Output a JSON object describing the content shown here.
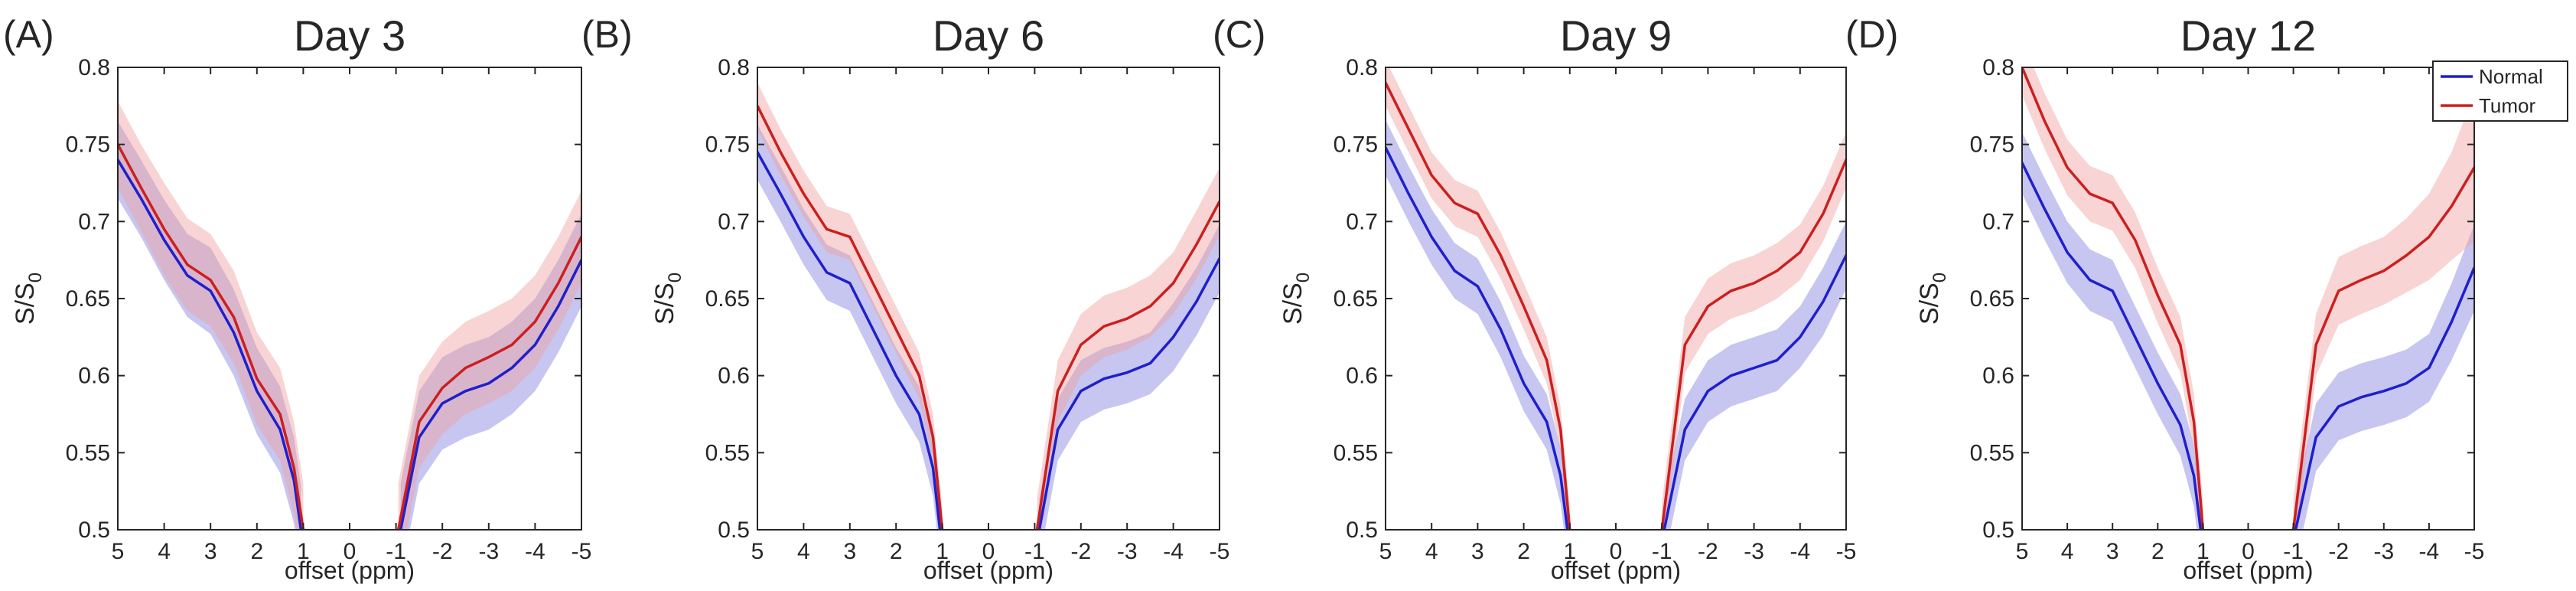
{
  "figure": {
    "legend": {
      "entries": [
        "Normal",
        "Tumor"
      ],
      "placement": "top-right of panel D"
    }
  },
  "chart_data": [
    {
      "type": "line",
      "panel_letter": "(A)",
      "title": "Day 3",
      "xlabel": "offset (ppm)",
      "ylabel": "S/S0",
      "ylabel_main": "S/S",
      "ylabel_sub": "0",
      "xlim": [
        5,
        -5
      ],
      "ylim": [
        0.5,
        0.8
      ],
      "xticks": [
        5,
        4,
        3,
        2,
        1,
        0,
        -1,
        -2,
        -3,
        -4,
        -5
      ],
      "xtick_labels": [
        "5",
        "4",
        "3",
        "2",
        "1",
        "0",
        "-1",
        "-2",
        "-3",
        "-4",
        "-5"
      ],
      "yticks": [
        0.5,
        0.55,
        0.6,
        0.65,
        0.7,
        0.75,
        0.8
      ],
      "ytick_labels": [
        "0.5",
        "0.55",
        "0.6",
        "0.65",
        "0.7",
        "0.75",
        "0.8"
      ],
      "series": [
        {
          "name": "Normal",
          "color": "#1f1fcc",
          "band_color": "#8080e0",
          "left": {
            "x": [
              5,
              4.5,
              4,
              3.5,
              3,
              2.5,
              2,
              1.5,
              1.2,
              1.05
            ],
            "y": [
              0.74,
              0.715,
              0.688,
              0.665,
              0.655,
              0.628,
              0.59,
              0.565,
              0.532,
              0.5
            ],
            "sd": [
              0.025,
              0.025,
              0.026,
              0.027,
              0.028,
              0.028,
              0.028,
              0.028,
              0.028,
              0.028
            ]
          },
          "right": {
            "x": [
              -1.1,
              -1.5,
              -2,
              -2.5,
              -3,
              -3.5,
              -4,
              -4.5,
              -5
            ],
            "y": [
              0.5,
              0.56,
              0.582,
              0.59,
              0.595,
              0.605,
              0.62,
              0.645,
              0.675
            ],
            "sd": [
              0.03,
              0.03,
              0.03,
              0.03,
              0.03,
              0.03,
              0.03,
              0.03,
              0.03
            ]
          }
        },
        {
          "name": "Tumor",
          "color": "#cc1f1f",
          "band_color": "#f0a0a0",
          "left": {
            "x": [
              5,
              4.5,
              4,
              3.5,
              3,
              2.5,
              2,
              1.5,
              1.2,
              1.0
            ],
            "y": [
              0.75,
              0.722,
              0.695,
              0.672,
              0.662,
              0.638,
              0.598,
              0.575,
              0.54,
              0.5
            ],
            "sd": [
              0.028,
              0.028,
              0.03,
              0.03,
              0.03,
              0.03,
              0.03,
              0.03,
              0.03,
              0.03
            ]
          },
          "right": {
            "x": [
              -1.05,
              -1.5,
              -2,
              -2.5,
              -3,
              -3.5,
              -4,
              -4.5,
              -5
            ],
            "y": [
              0.5,
              0.57,
              0.592,
              0.605,
              0.612,
              0.62,
              0.635,
              0.66,
              0.69
            ],
            "sd": [
              0.03,
              0.03,
              0.03,
              0.03,
              0.03,
              0.03,
              0.03,
              0.03,
              0.03
            ]
          }
        }
      ]
    },
    {
      "type": "line",
      "panel_letter": "(B)",
      "title": "Day 6",
      "xlabel": "offset (ppm)",
      "ylabel": "S/S0",
      "ylabel_main": "S/S",
      "ylabel_sub": "0",
      "xlim": [
        5,
        -5
      ],
      "ylim": [
        0.5,
        0.8
      ],
      "xticks": [
        5,
        4,
        3,
        2,
        1,
        0,
        -1,
        -2,
        -3,
        -4,
        -5
      ],
      "xtick_labels": [
        "5",
        "4",
        "3",
        "2",
        "1",
        "0",
        "-1",
        "-2",
        "-3",
        "-4",
        "-5"
      ],
      "yticks": [
        0.5,
        0.55,
        0.6,
        0.65,
        0.7,
        0.75,
        0.8
      ],
      "ytick_labels": [
        "0.5",
        "0.55",
        "0.6",
        "0.65",
        "0.7",
        "0.75",
        "0.8"
      ],
      "series": [
        {
          "name": "Normal",
          "color": "#1f1fcc",
          "band_color": "#8080e0",
          "left": {
            "x": [
              5,
              4.5,
              4,
              3.5,
              3,
              2.5,
              2,
              1.5,
              1.2,
              1.05
            ],
            "y": [
              0.745,
              0.718,
              0.69,
              0.667,
              0.66,
              0.63,
              0.6,
              0.575,
              0.54,
              0.5
            ],
            "sd": [
              0.018,
              0.018,
              0.018,
              0.018,
              0.018,
              0.018,
              0.018,
              0.018,
              0.018,
              0.018
            ]
          },
          "right": {
            "x": [
              -1.1,
              -1.5,
              -2,
              -2.5,
              -3,
              -3.5,
              -4,
              -4.5,
              -5
            ],
            "y": [
              0.5,
              0.565,
              0.59,
              0.598,
              0.602,
              0.608,
              0.625,
              0.648,
              0.676
            ],
            "sd": [
              0.02,
              0.02,
              0.02,
              0.02,
              0.02,
              0.02,
              0.022,
              0.022,
              0.022
            ]
          }
        },
        {
          "name": "Tumor",
          "color": "#cc1f1f",
          "band_color": "#f0a0a0",
          "left": {
            "x": [
              5,
              4.5,
              4,
              3.5,
              3,
              2.5,
              2,
              1.5,
              1.2,
              1.0
            ],
            "y": [
              0.775,
              0.745,
              0.718,
              0.695,
              0.69,
              0.66,
              0.63,
              0.6,
              0.56,
              0.5
            ],
            "sd": [
              0.015,
              0.015,
              0.015,
              0.015,
              0.015,
              0.015,
              0.015,
              0.015,
              0.015,
              0.015
            ]
          },
          "right": {
            "x": [
              -1.05,
              -1.5,
              -2,
              -2.5,
              -3,
              -3.5,
              -4,
              -4.5,
              -5
            ],
            "y": [
              0.5,
              0.59,
              0.62,
              0.632,
              0.637,
              0.645,
              0.66,
              0.685,
              0.713
            ],
            "sd": [
              0.02,
              0.02,
              0.02,
              0.02,
              0.02,
              0.02,
              0.02,
              0.022,
              0.022
            ]
          }
        }
      ]
    },
    {
      "type": "line",
      "panel_letter": "(C)",
      "title": "Day 9",
      "xlabel": "offset (ppm)",
      "ylabel": "S/S0",
      "ylabel_main": "S/S",
      "ylabel_sub": "0",
      "xlim": [
        5,
        -5
      ],
      "ylim": [
        0.5,
        0.8
      ],
      "xticks": [
        5,
        4,
        3,
        2,
        1,
        0,
        -1,
        -2,
        -3,
        -4,
        -5
      ],
      "xtick_labels": [
        "5",
        "4",
        "3",
        "2",
        "1",
        "0",
        "-1",
        "-2",
        "-3",
        "-4",
        "-5"
      ],
      "yticks": [
        0.5,
        0.55,
        0.6,
        0.65,
        0.7,
        0.75,
        0.8
      ],
      "ytick_labels": [
        "0.5",
        "0.55",
        "0.6",
        "0.65",
        "0.7",
        "0.75",
        "0.8"
      ],
      "series": [
        {
          "name": "Normal",
          "color": "#1f1fcc",
          "band_color": "#8080e0",
          "left": {
            "x": [
              5,
              4.5,
              4,
              3.5,
              3,
              2.5,
              2,
              1.5,
              1.2,
              1.05
            ],
            "y": [
              0.748,
              0.718,
              0.69,
              0.668,
              0.658,
              0.63,
              0.595,
              0.57,
              0.535,
              0.5
            ],
            "sd": [
              0.018,
              0.018,
              0.018,
              0.018,
              0.018,
              0.018,
              0.018,
              0.018,
              0.018,
              0.018
            ]
          },
          "right": {
            "x": [
              -1.05,
              -1.5,
              -2,
              -2.5,
              -3,
              -3.5,
              -4,
              -4.5,
              -5
            ],
            "y": [
              0.5,
              0.565,
              0.59,
              0.6,
              0.605,
              0.61,
              0.625,
              0.648,
              0.678
            ],
            "sd": [
              0.02,
              0.02,
              0.02,
              0.02,
              0.02,
              0.02,
              0.02,
              0.022,
              0.022
            ]
          }
        },
        {
          "name": "Tumor",
          "color": "#cc1f1f",
          "band_color": "#f0a0a0",
          "left": {
            "x": [
              5,
              4.5,
              4,
              3.5,
              3,
              2.5,
              2,
              1.5,
              1.2,
              1.0
            ],
            "y": [
              0.79,
              0.76,
              0.73,
              0.712,
              0.705,
              0.678,
              0.645,
              0.61,
              0.565,
              0.5
            ],
            "sd": [
              0.015,
              0.015,
              0.015,
              0.015,
              0.015,
              0.015,
              0.015,
              0.015,
              0.015,
              0.015
            ]
          },
          "right": {
            "x": [
              -1.0,
              -1.5,
              -2,
              -2.5,
              -3,
              -3.5,
              -4,
              -4.5,
              -5
            ],
            "y": [
              0.5,
              0.62,
              0.645,
              0.655,
              0.66,
              0.668,
              0.68,
              0.705,
              0.74
            ],
            "sd": [
              0.018,
              0.018,
              0.018,
              0.018,
              0.018,
              0.018,
              0.018,
              0.018,
              0.018
            ]
          }
        }
      ]
    },
    {
      "type": "line",
      "panel_letter": "(D)",
      "title": "Day 12",
      "xlabel": "offset (ppm)",
      "ylabel": "S/S0",
      "ylabel_main": "S/S",
      "ylabel_sub": "0",
      "xlim": [
        5,
        -5
      ],
      "ylim": [
        0.5,
        0.8
      ],
      "xticks": [
        5,
        4,
        3,
        2,
        1,
        0,
        -1,
        -2,
        -3,
        -4,
        -5
      ],
      "xtick_labels": [
        "5",
        "4",
        "3",
        "2",
        "1",
        "0",
        "-1",
        "-2",
        "-3",
        "-4",
        "-5"
      ],
      "yticks": [
        0.5,
        0.55,
        0.6,
        0.65,
        0.7,
        0.75,
        0.8
      ],
      "ytick_labels": [
        "0.5",
        "0.55",
        "0.6",
        "0.65",
        "0.7",
        "0.75",
        "0.8"
      ],
      "series": [
        {
          "name": "Normal",
          "color": "#1f1fcc",
          "band_color": "#8080e0",
          "left": {
            "x": [
              5,
              4.5,
              4,
              3.5,
              3,
              2.5,
              2,
              1.5,
              1.2,
              1.05
            ],
            "y": [
              0.738,
              0.708,
              0.68,
              0.662,
              0.655,
              0.625,
              0.595,
              0.568,
              0.535,
              0.5
            ],
            "sd": [
              0.02,
              0.02,
              0.02,
              0.02,
              0.02,
              0.02,
              0.02,
              0.02,
              0.02,
              0.02
            ]
          },
          "right": {
            "x": [
              -1.05,
              -1.5,
              -2,
              -2.5,
              -3,
              -3.5,
              -4,
              -4.5,
              -5
            ],
            "y": [
              0.5,
              0.56,
              0.58,
              0.586,
              0.59,
              0.595,
              0.605,
              0.635,
              0.67
            ],
            "sd": [
              0.022,
              0.022,
              0.022,
              0.022,
              0.022,
              0.022,
              0.022,
              0.025,
              0.028
            ]
          }
        },
        {
          "name": "Tumor",
          "color": "#cc1f1f",
          "band_color": "#f0a0a0",
          "left": {
            "x": [
              5,
              4.5,
              4,
              3.5,
              3,
              2.5,
              2,
              1.5,
              1.2,
              1.0
            ],
            "y": [
              0.8,
              0.765,
              0.735,
              0.718,
              0.712,
              0.688,
              0.652,
              0.62,
              0.57,
              0.5
            ],
            "sd": [
              0.018,
              0.018,
              0.018,
              0.018,
              0.018,
              0.018,
              0.018,
              0.018,
              0.018,
              0.018
            ]
          },
          "right": {
            "x": [
              -1.0,
              -1.5,
              -2,
              -2.5,
              -3,
              -3.5,
              -4,
              -4.5,
              -5
            ],
            "y": [
              0.5,
              0.62,
              0.655,
              0.662,
              0.668,
              0.678,
              0.69,
              0.71,
              0.735
            ],
            "sd": [
              0.02,
              0.02,
              0.022,
              0.022,
              0.022,
              0.024,
              0.028,
              0.035,
              0.048
            ]
          }
        }
      ]
    }
  ]
}
